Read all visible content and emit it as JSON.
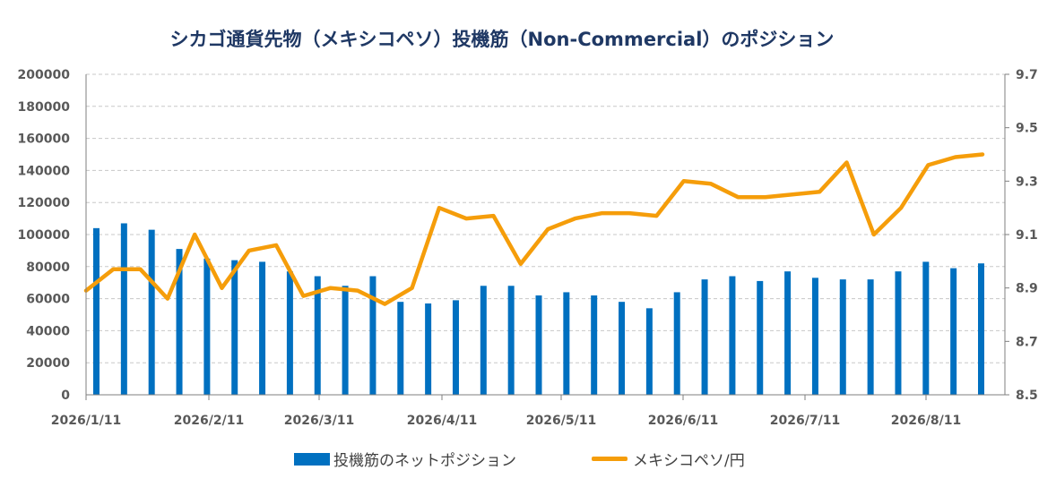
{
  "title": "シカゴ通貨先物（メキシコペソ）投機筋（Non-Commercial）のポジション",
  "chart_data": {
    "type": "bar+line",
    "title": "シカゴ通貨先物（メキシコペソ）投機筋（Non-Commercial）のポジション",
    "x_tick_labels": [
      "2026/1/11",
      "2026/2/11",
      "2026/3/11",
      "2026/4/11",
      "2026/5/11",
      "2026/6/11",
      "2026/7/11",
      "2026/8/11"
    ],
    "left_axis": {
      "ylim": [
        0,
        200000
      ],
      "ticks": [
        "200000",
        "180000",
        "160000",
        "140000",
        "120000",
        "100000",
        "80000",
        "60000",
        "40000",
        "20000",
        "0"
      ]
    },
    "right_axis": {
      "ylim": [
        8.5,
        9.7
      ],
      "ticks": [
        "9.7",
        "9.5",
        "9.3",
        "9.1",
        "8.9",
        "8.7",
        "8.5"
      ]
    },
    "grid": true,
    "legend_position": "bottom",
    "series": [
      {
        "name": "投機筋のネットポジション",
        "type": "bar",
        "axis": "left",
        "color": "#0070c0",
        "values": [
          104000,
          107000,
          103000,
          91000,
          85000,
          84000,
          83000,
          77000,
          74000,
          68000,
          74000,
          58000,
          57000,
          59000,
          68000,
          68000,
          62000,
          64000,
          62000,
          58000,
          54000,
          64000,
          72000,
          74000,
          71000,
          77000,
          73000,
          72000,
          72000,
          77000,
          83000,
          79000,
          82000
        ]
      },
      {
        "name": "メキシコペソ/円",
        "type": "line",
        "axis": "right",
        "color": "#f59d0a",
        "values": [
          8.89,
          8.97,
          8.97,
          8.86,
          9.1,
          8.9,
          9.04,
          9.06,
          8.87,
          8.9,
          8.89,
          8.84,
          8.9,
          9.2,
          9.16,
          9.17,
          8.99,
          9.12,
          9.16,
          9.18,
          9.18,
          9.17,
          9.3,
          9.29,
          9.24,
          9.24,
          9.25,
          9.26,
          9.37,
          9.1,
          9.2,
          9.36,
          9.39,
          9.4
        ]
      }
    ]
  }
}
